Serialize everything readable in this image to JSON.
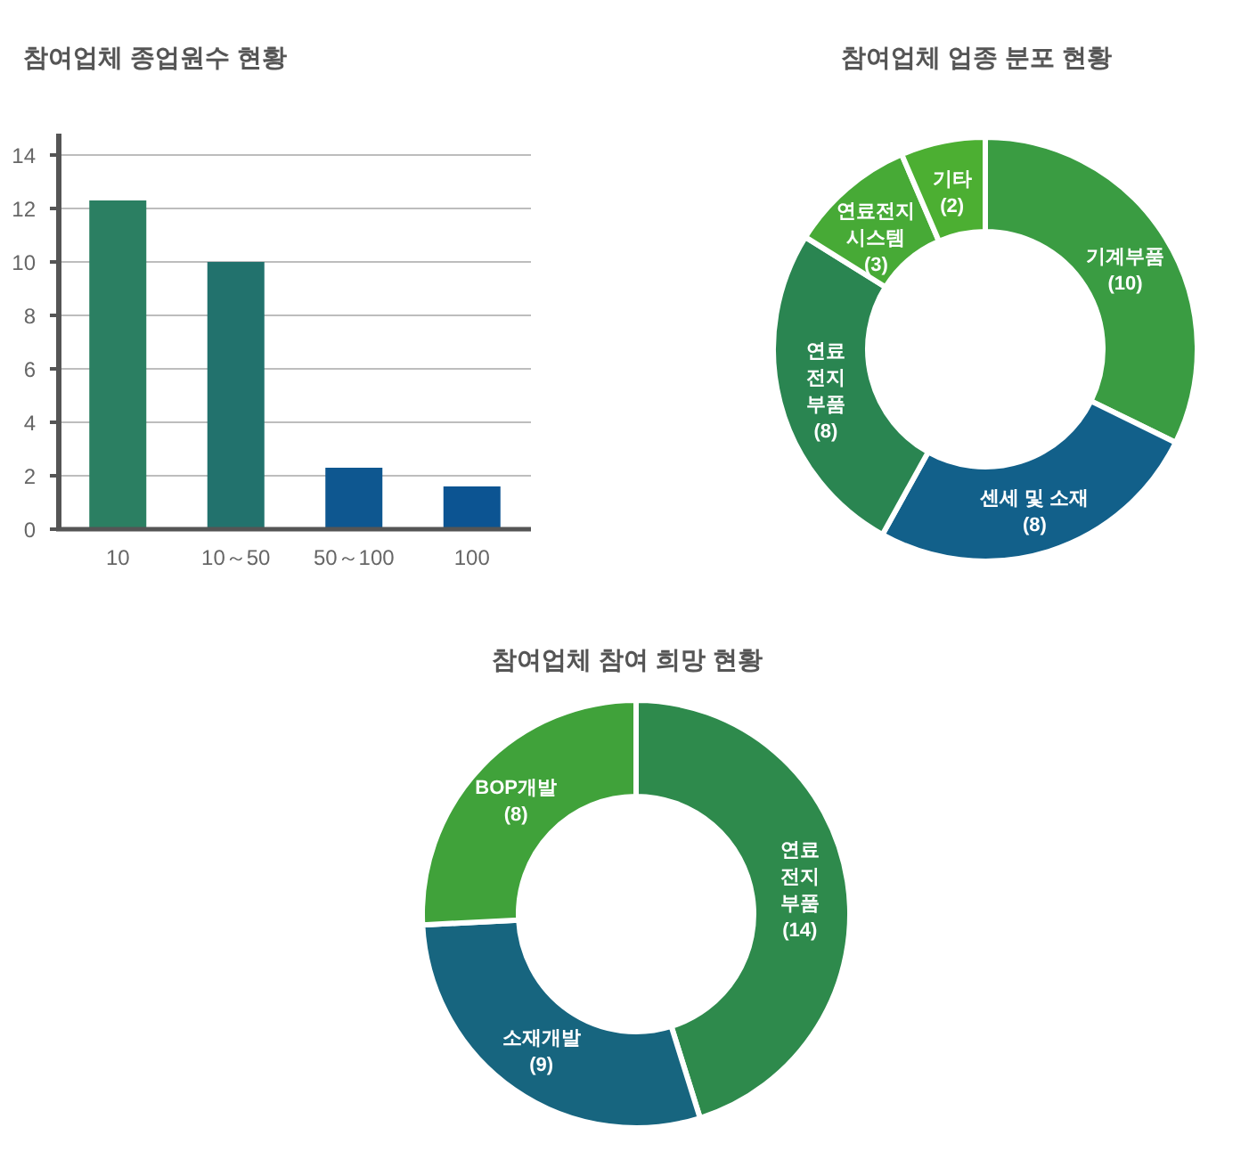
{
  "chart_data": [
    {
      "type": "bar",
      "title": "참여업체 종업원수 현황",
      "categories": [
        "10",
        "10～50",
        "50～100",
        "100"
      ],
      "values": [
        12.3,
        10,
        2.3,
        1.6
      ],
      "colors": [
        "#2b7f62",
        "#22726d",
        "#0e5790",
        "#0c5492"
      ],
      "ylim": [
        0,
        14.8
      ],
      "yticks": [
        0,
        2,
        4,
        6,
        8,
        10,
        12,
        14
      ],
      "grid": "y"
    },
    {
      "type": "donut",
      "title": "참여업체 업종 분포 현황",
      "categories": [
        "기계부품",
        "센세 및 소재",
        "연료전지부품",
        "연료전지시스템",
        "기타"
      ],
      "values": [
        10,
        8,
        8,
        3,
        2
      ],
      "value_labels": [
        "(10)",
        "(8)",
        "(8)",
        "(3)",
        "(2)"
      ],
      "colors": [
        "#3a9c42",
        "#12608a",
        "#2a8551",
        "#47aa36",
        "#4caf32"
      ]
    },
    {
      "type": "donut",
      "title": "참여업체 참여 희망 현황",
      "categories": [
        "연료전지부품",
        "소재개발",
        "BOP개발"
      ],
      "values": [
        14,
        9,
        8
      ],
      "value_labels": [
        "(14)",
        "(9)",
        "(8)"
      ],
      "colors": [
        "#2e8a4c",
        "#17657f",
        "#40a23a"
      ]
    }
  ]
}
